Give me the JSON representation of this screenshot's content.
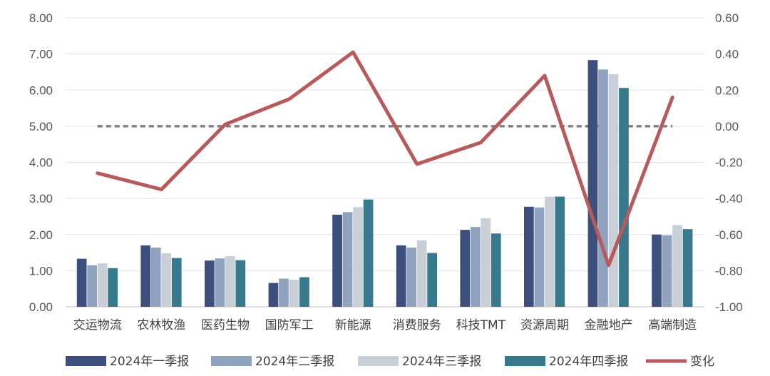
{
  "chart_data": {
    "type": "bar",
    "categories": [
      "交运物流",
      "农林牧渔",
      "医药生物",
      "国防军工",
      "新能源",
      "消费服务",
      "科技TMT",
      "资源周期",
      "金融地产",
      "高端制造"
    ],
    "series": [
      {
        "name": "2024年一季报",
        "type": "bar",
        "axis": "left",
        "color": "#3D4F7C",
        "values": [
          1.33,
          1.7,
          1.28,
          0.66,
          2.55,
          1.7,
          2.13,
          2.77,
          6.83,
          2.0
        ]
      },
      {
        "name": "2024年二季报",
        "type": "bar",
        "axis": "left",
        "color": "#8FA3BE",
        "values": [
          1.15,
          1.64,
          1.34,
          0.78,
          2.62,
          1.64,
          2.21,
          2.75,
          6.57,
          1.98
        ]
      },
      {
        "name": "2024年三季报",
        "type": "bar",
        "axis": "left",
        "color": "#C8CFD6",
        "values": [
          1.2,
          1.48,
          1.4,
          0.75,
          2.76,
          1.84,
          2.45,
          3.05,
          6.44,
          2.26
        ]
      },
      {
        "name": "2024年四季报",
        "type": "bar",
        "axis": "left",
        "color": "#377A8E",
        "values": [
          1.07,
          1.35,
          1.29,
          0.82,
          2.97,
          1.49,
          2.03,
          3.05,
          6.06,
          2.15
        ]
      },
      {
        "name": "变化",
        "type": "line",
        "axis": "right",
        "color": "#B85A5C",
        "values": [
          -0.26,
          -0.35,
          0.01,
          0.15,
          0.41,
          -0.21,
          -0.09,
          0.28,
          -0.77,
          0.16
        ]
      }
    ],
    "yleft": {
      "min": 0,
      "max": 8,
      "step": 1,
      "decimals": 2
    },
    "yright": {
      "min": -1,
      "max": 0.6,
      "step": 0.2,
      "decimals": 2
    },
    "zero_line": {
      "axis": "right",
      "value": 0,
      "style": "dashed",
      "color": "#808080"
    },
    "grid": true,
    "legend_position": "bottom",
    "title": "",
    "xlabel": "",
    "ylabel": ""
  }
}
